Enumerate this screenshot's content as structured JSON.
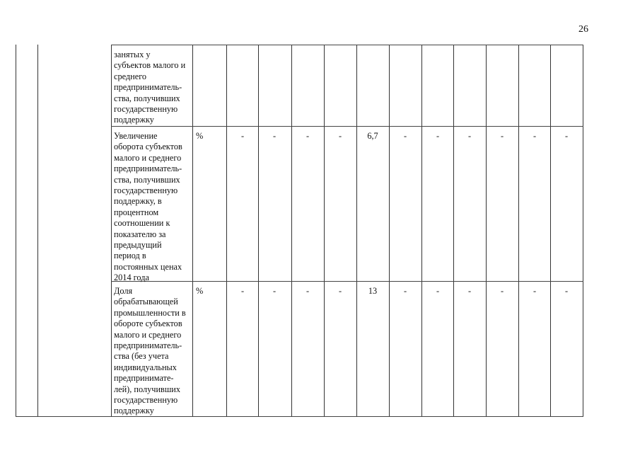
{
  "page_number": "26",
  "rows": [
    {
      "indicator": "занятых у\nсубъектов малого и\nсреднего\nпредприниматель-\nства, получивших\nгосударственную\nподдержку",
      "unit": "",
      "values": [
        "",
        "",
        "",
        "",
        "",
        "",
        "",
        "",
        "",
        "",
        ""
      ]
    },
    {
      "indicator": "Увеличение\nоборота субъектов\nмалого и среднего\nпредприниматель-\nства, получивших\nгосударственную\nподдержку, в\nпроцентном\nсоотношении к\nпоказателю за\nпредыдущий\nпериод в\nпостоянных ценах\n2014 года",
      "unit": "%",
      "values": [
        "-",
        "-",
        "-",
        "-",
        "6,7",
        "-",
        "-",
        "-",
        "-",
        "-",
        "-"
      ]
    },
    {
      "indicator": "Доля\nобрабатывающей\nпромышленности в\nобороте субъектов\nмалого и среднего\nпредприниматель-\nства (без учета\nиндивидуальных\nпредпринимате-\nлей), получивших\nгосударственную\nподдержку",
      "unit": "%",
      "values": [
        "-",
        "-",
        "-",
        "-",
        "13",
        "-",
        "-",
        "-",
        "-",
        "-",
        "-"
      ]
    }
  ]
}
